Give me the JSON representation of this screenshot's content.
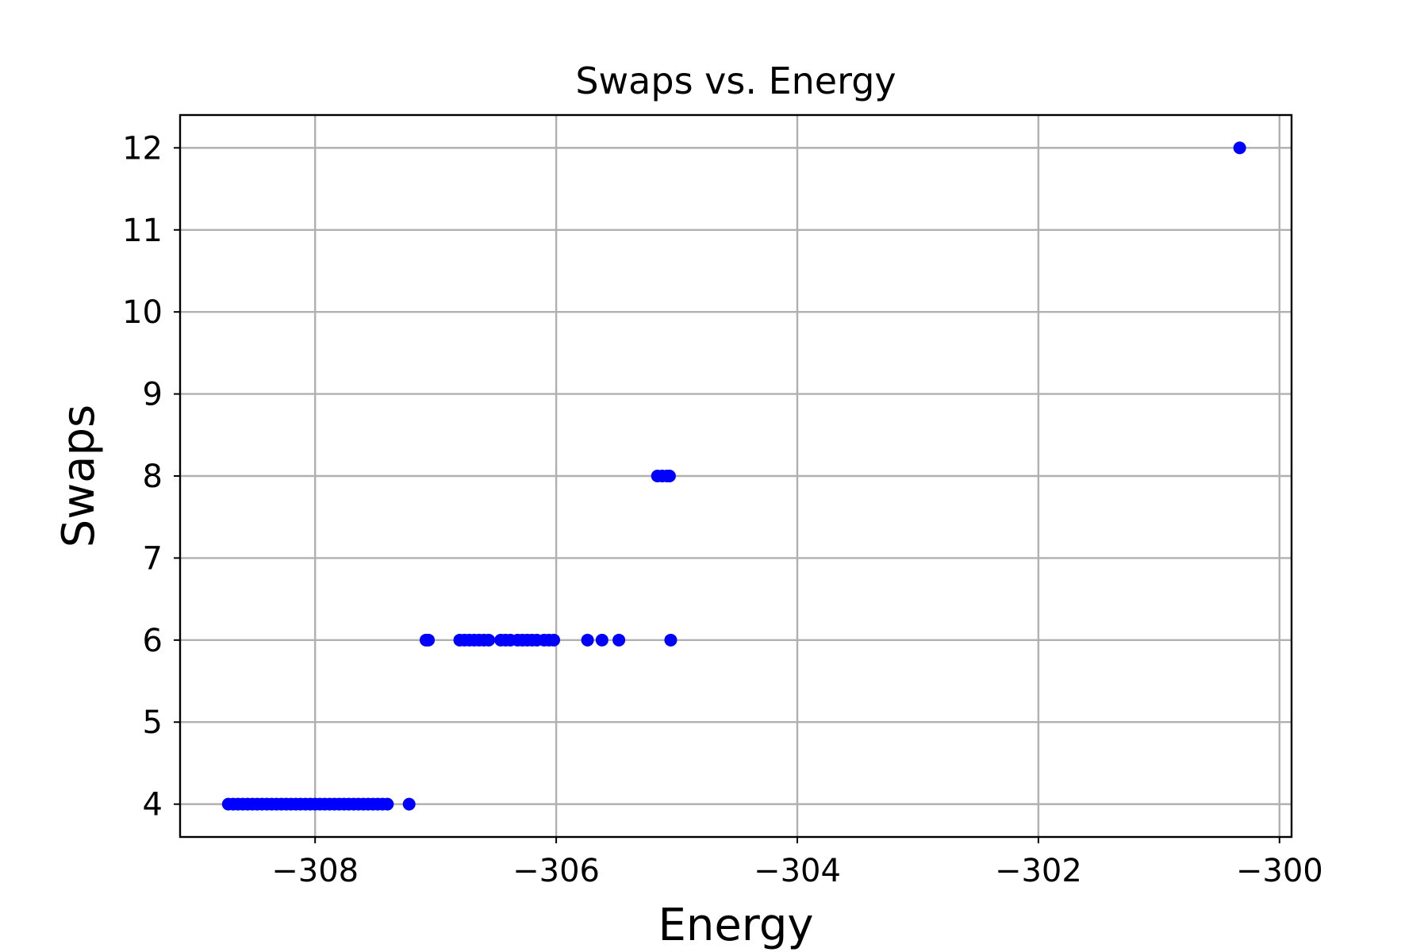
{
  "chart_data": {
    "type": "scatter",
    "title": "Swaps vs. Energy",
    "xlabel": "Energy",
    "ylabel": "Swaps",
    "xlim": [
      -309.12,
      -299.9
    ],
    "ylim": [
      3.6,
      12.4
    ],
    "xticks": [
      {
        "value": -308,
        "label": "−308"
      },
      {
        "value": -306,
        "label": "−306"
      },
      {
        "value": -304,
        "label": "−304"
      },
      {
        "value": -302,
        "label": "−302"
      },
      {
        "value": -300,
        "label": "−300"
      }
    ],
    "yticks": [
      {
        "value": 4,
        "label": "4"
      },
      {
        "value": 5,
        "label": "5"
      },
      {
        "value": 6,
        "label": "6"
      },
      {
        "value": 7,
        "label": "7"
      },
      {
        "value": 8,
        "label": "8"
      },
      {
        "value": 9,
        "label": "9"
      },
      {
        "value": 10,
        "label": "10"
      },
      {
        "value": 11,
        "label": "11"
      },
      {
        "value": 12,
        "label": "12"
      }
    ],
    "grid": true,
    "marker_color": "#0000ff",
    "series": [
      {
        "points": [
          {
            "x": -308.72,
            "y": 4
          },
          {
            "x": -308.68,
            "y": 4
          },
          {
            "x": -308.64,
            "y": 4
          },
          {
            "x": -308.6,
            "y": 4
          },
          {
            "x": -308.56,
            "y": 4
          },
          {
            "x": -308.52,
            "y": 4
          },
          {
            "x": -308.48,
            "y": 4
          },
          {
            "x": -308.44,
            "y": 4
          },
          {
            "x": -308.4,
            "y": 4
          },
          {
            "x": -308.36,
            "y": 4
          },
          {
            "x": -308.32,
            "y": 4
          },
          {
            "x": -308.28,
            "y": 4
          },
          {
            "x": -308.24,
            "y": 4
          },
          {
            "x": -308.2,
            "y": 4
          },
          {
            "x": -308.16,
            "y": 4
          },
          {
            "x": -308.12,
            "y": 4
          },
          {
            "x": -308.08,
            "y": 4
          },
          {
            "x": -308.04,
            "y": 4
          },
          {
            "x": -308.0,
            "y": 4
          },
          {
            "x": -307.96,
            "y": 4
          },
          {
            "x": -307.92,
            "y": 4
          },
          {
            "x": -307.88,
            "y": 4
          },
          {
            "x": -307.84,
            "y": 4
          },
          {
            "x": -307.8,
            "y": 4
          },
          {
            "x": -307.76,
            "y": 4
          },
          {
            "x": -307.72,
            "y": 4
          },
          {
            "x": -307.68,
            "y": 4
          },
          {
            "x": -307.64,
            "y": 4
          },
          {
            "x": -307.6,
            "y": 4
          },
          {
            "x": -307.56,
            "y": 4
          },
          {
            "x": -307.52,
            "y": 4
          },
          {
            "x": -307.48,
            "y": 4
          },
          {
            "x": -307.44,
            "y": 4
          },
          {
            "x": -307.4,
            "y": 4
          },
          {
            "x": -307.22,
            "y": 4
          },
          {
            "x": -307.08,
            "y": 6
          },
          {
            "x": -307.06,
            "y": 6
          },
          {
            "x": -306.8,
            "y": 6
          },
          {
            "x": -306.76,
            "y": 6
          },
          {
            "x": -306.72,
            "y": 6
          },
          {
            "x": -306.68,
            "y": 6
          },
          {
            "x": -306.64,
            "y": 6
          },
          {
            "x": -306.6,
            "y": 6
          },
          {
            "x": -306.56,
            "y": 6
          },
          {
            "x": -306.46,
            "y": 6
          },
          {
            "x": -306.42,
            "y": 6
          },
          {
            "x": -306.38,
            "y": 6
          },
          {
            "x": -306.32,
            "y": 6
          },
          {
            "x": -306.28,
            "y": 6
          },
          {
            "x": -306.24,
            "y": 6
          },
          {
            "x": -306.2,
            "y": 6
          },
          {
            "x": -306.16,
            "y": 6
          },
          {
            "x": -306.1,
            "y": 6
          },
          {
            "x": -306.06,
            "y": 6
          },
          {
            "x": -306.02,
            "y": 6
          },
          {
            "x": -305.74,
            "y": 6
          },
          {
            "x": -305.62,
            "y": 6
          },
          {
            "x": -305.48,
            "y": 6
          },
          {
            "x": -305.05,
            "y": 6
          },
          {
            "x": -305.16,
            "y": 8
          },
          {
            "x": -305.12,
            "y": 8
          },
          {
            "x": -305.08,
            "y": 8
          },
          {
            "x": -305.06,
            "y": 8
          },
          {
            "x": -300.33,
            "y": 12
          }
        ]
      }
    ]
  }
}
